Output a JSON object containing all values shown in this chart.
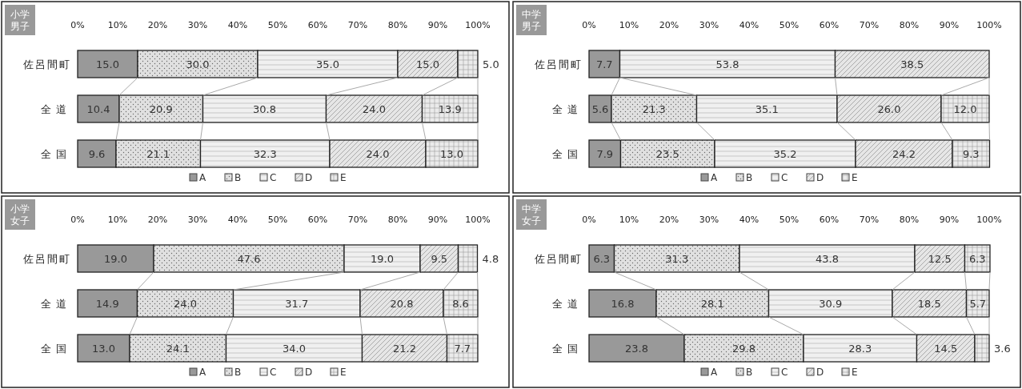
{
  "chart_data": [
    {
      "type": "bar",
      "orientation": "horizontal",
      "stacked": true,
      "title": "小学男子",
      "legend": "bottom",
      "categories": [
        "佐呂間町",
        "全道",
        "全国"
      ],
      "xlim": [
        0,
        100
      ],
      "xticks": [
        {
          "value": 0,
          "label": "0%"
        },
        {
          "value": 10,
          "label": "10%"
        },
        {
          "value": 20,
          "label": "20%"
        },
        {
          "value": 30,
          "label": "30%"
        },
        {
          "value": 40,
          "label": "40%"
        },
        {
          "value": 50,
          "label": "50%"
        },
        {
          "value": 60,
          "label": "60%"
        },
        {
          "value": 70,
          "label": "70%"
        },
        {
          "value": 80,
          "label": "80%"
        },
        {
          "value": 90,
          "label": "90%"
        },
        {
          "value": 100,
          "label": "100%"
        }
      ],
      "series": [
        {
          "name": "A",
          "color": "#999999",
          "values": [
            15.0,
            10.4,
            9.6
          ],
          "value_labels": [
            "15.0",
            "10.4",
            "9.6"
          ]
        },
        {
          "name": "B",
          "color": "#e0e0e0",
          "values": [
            30.0,
            20.9,
            21.1
          ],
          "value_labels": [
            "30.0",
            "20.9",
            "21.1"
          ]
        },
        {
          "name": "C",
          "color": "#f0f0f0",
          "values": [
            35.0,
            30.8,
            32.3
          ],
          "value_labels": [
            "35.0",
            "30.8",
            "32.3"
          ]
        },
        {
          "name": "D",
          "color": "#e6e6e6",
          "values": [
            15.0,
            24.0,
            24.0
          ],
          "value_labels": [
            "15.0",
            "24.0",
            "24.0"
          ]
        },
        {
          "name": "E",
          "color": "#ebebeb",
          "values": [
            5.0,
            13.9,
            13.0
          ],
          "value_labels": [
            "5.0",
            "13.9",
            "13.0"
          ]
        }
      ]
    },
    {
      "type": "bar",
      "orientation": "horizontal",
      "stacked": true,
      "title": "中学男子",
      "legend": "bottom",
      "categories": [
        "佐呂間町",
        "全道",
        "全国"
      ],
      "xlim": [
        0,
        100
      ],
      "xticks": [
        {
          "value": 0,
          "label": "0%"
        },
        {
          "value": 10,
          "label": "10%"
        },
        {
          "value": 20,
          "label": "20%"
        },
        {
          "value": 30,
          "label": "30%"
        },
        {
          "value": 40,
          "label": "40%"
        },
        {
          "value": 50,
          "label": "50%"
        },
        {
          "value": 60,
          "label": "60%"
        },
        {
          "value": 70,
          "label": "70%"
        },
        {
          "value": 80,
          "label": "80%"
        },
        {
          "value": 90,
          "label": "90%"
        },
        {
          "value": 100,
          "label": "100%"
        }
      ],
      "series": [
        {
          "name": "A",
          "color": "#999999",
          "values": [
            7.7,
            5.6,
            7.9
          ],
          "value_labels": [
            "7.7",
            "5.6",
            "7.9"
          ]
        },
        {
          "name": "B",
          "color": "#e0e0e0",
          "values": [
            0,
            21.3,
            23.5
          ],
          "value_labels": [
            null,
            "21.3",
            "23.5"
          ]
        },
        {
          "name": "C",
          "color": "#f0f0f0",
          "values": [
            53.8,
            35.1,
            35.2
          ],
          "value_labels": [
            "53.8",
            "35.1",
            "35.2"
          ]
        },
        {
          "name": "D",
          "color": "#e6e6e6",
          "values": [
            38.5,
            26.0,
            24.2
          ],
          "value_labels": [
            "38.5",
            "26.0",
            "24.2"
          ]
        },
        {
          "name": "E",
          "color": "#ebebeb",
          "values": [
            0,
            12.0,
            9.3
          ],
          "value_labels": [
            null,
            "12.0",
            "9.3"
          ]
        }
      ]
    },
    {
      "type": "bar",
      "orientation": "horizontal",
      "stacked": true,
      "title": "小学女子",
      "legend": "bottom",
      "categories": [
        "佐呂間町",
        "全道",
        "全国"
      ],
      "xlim": [
        0,
        100
      ],
      "xticks": [
        {
          "value": 0,
          "label": "0%"
        },
        {
          "value": 10,
          "label": "10%"
        },
        {
          "value": 20,
          "label": "20%"
        },
        {
          "value": 30,
          "label": "30%"
        },
        {
          "value": 40,
          "label": "40%"
        },
        {
          "value": 50,
          "label": "50%"
        },
        {
          "value": 60,
          "label": "60%"
        },
        {
          "value": 70,
          "label": "70%"
        },
        {
          "value": 80,
          "label": "80%"
        },
        {
          "value": 90,
          "label": "90%"
        },
        {
          "value": 100,
          "label": "100%"
        }
      ],
      "series": [
        {
          "name": "A",
          "color": "#999999",
          "values": [
            19.0,
            14.9,
            13.0
          ],
          "value_labels": [
            "19.0",
            "14.9",
            "13.0"
          ]
        },
        {
          "name": "B",
          "color": "#e0e0e0",
          "values": [
            47.6,
            24.0,
            24.1
          ],
          "value_labels": [
            "47.6",
            "24.0",
            "24.1"
          ]
        },
        {
          "name": "C",
          "color": "#f0f0f0",
          "values": [
            19.0,
            31.7,
            34.0
          ],
          "value_labels": [
            "19.0",
            "31.7",
            "34.0"
          ]
        },
        {
          "name": "D",
          "color": "#e6e6e6",
          "values": [
            9.5,
            20.8,
            21.2
          ],
          "value_labels": [
            "9.5",
            "20.8",
            "21.2"
          ]
        },
        {
          "name": "E",
          "color": "#ebebeb",
          "values": [
            4.8,
            8.6,
            7.7
          ],
          "value_labels": [
            "4.8",
            "8.6",
            "7.7"
          ]
        }
      ]
    },
    {
      "type": "bar",
      "orientation": "horizontal",
      "stacked": true,
      "title": "中学女子",
      "legend": "bottom",
      "categories": [
        "佐呂間町",
        "全道",
        "全国"
      ],
      "xlim": [
        0,
        100
      ],
      "xticks": [
        {
          "value": 0,
          "label": "0%"
        },
        {
          "value": 10,
          "label": "10%"
        },
        {
          "value": 20,
          "label": "20%"
        },
        {
          "value": 30,
          "label": "30%"
        },
        {
          "value": 40,
          "label": "40%"
        },
        {
          "value": 50,
          "label": "50%"
        },
        {
          "value": 60,
          "label": "60%"
        },
        {
          "value": 70,
          "label": "70%"
        },
        {
          "value": 80,
          "label": "80%"
        },
        {
          "value": 90,
          "label": "90%"
        },
        {
          "value": 100,
          "label": "100%"
        }
      ],
      "series": [
        {
          "name": "A",
          "color": "#999999",
          "values": [
            6.3,
            16.8,
            23.8
          ],
          "value_labels": [
            "6.3",
            "16.8",
            "23.8"
          ]
        },
        {
          "name": "B",
          "color": "#e0e0e0",
          "values": [
            31.3,
            28.1,
            29.8
          ],
          "value_labels": [
            "31.3",
            "28.1",
            "29.8"
          ]
        },
        {
          "name": "C",
          "color": "#f0f0f0",
          "values": [
            43.8,
            30.9,
            28.3
          ],
          "value_labels": [
            "43.8",
            "30.9",
            "28.3"
          ]
        },
        {
          "name": "D",
          "color": "#e6e6e6",
          "values": [
            12.5,
            18.5,
            14.5
          ],
          "value_labels": [
            "12.5",
            "18.5",
            "14.5"
          ]
        },
        {
          "name": "E",
          "color": "#ebebeb",
          "values": [
            6.3,
            5.7,
            3.6
          ],
          "value_labels": [
            "6.3",
            "5.7",
            "3.6"
          ]
        }
      ]
    }
  ]
}
